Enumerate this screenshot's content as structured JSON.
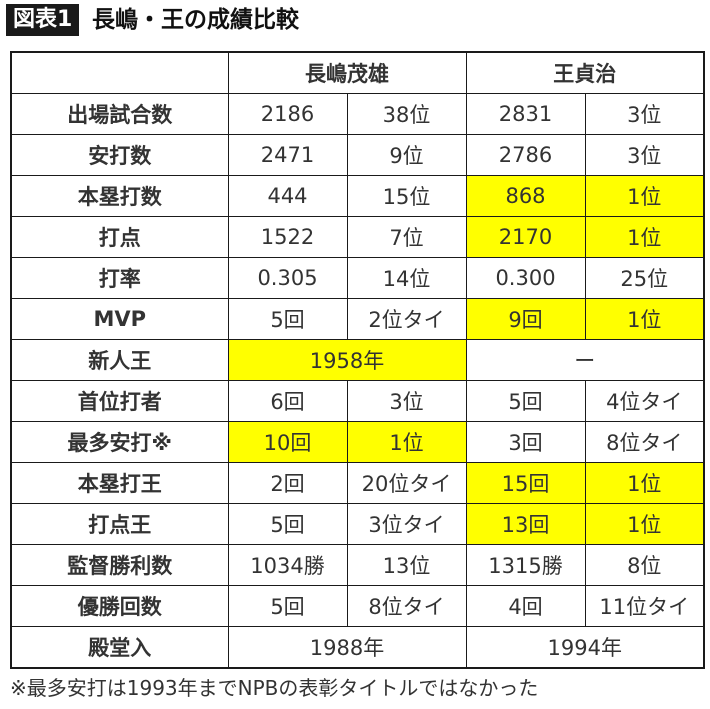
{
  "figure_label": "図表1",
  "title": "長嶋・王の成績比較",
  "players": [
    "長嶋茂雄",
    "王貞治"
  ],
  "rows": [
    {
      "label": "出場試合数",
      "nagashima_value": "2186",
      "nagashima_rank": "38位",
      "oh_value": "2831",
      "oh_rank": "3位"
    },
    {
      "label": "安打数",
      "nagashima_value": "2471",
      "nagashima_rank": "9位",
      "oh_value": "2786",
      "oh_rank": "3位"
    },
    {
      "label": "本塁打数",
      "nagashima_value": "444",
      "nagashima_rank": "15位",
      "oh_value": "868",
      "oh_rank": "1位"
    },
    {
      "label": "打点",
      "nagashima_value": "1522",
      "nagashima_rank": "7位",
      "oh_value": "2170",
      "oh_rank": "1位"
    },
    {
      "label": "打率",
      "nagashima_value": "0.305",
      "nagashima_rank": "14位",
      "oh_value": "0.300",
      "oh_rank": "25位"
    },
    {
      "label": "MVP",
      "nagashima_value": "5回",
      "nagashima_rank": "2位タイ",
      "oh_value": "9回",
      "oh_rank": "1位"
    },
    {
      "label": "新人王",
      "nagashima_merged": "1958年",
      "oh_merged": "ー"
    },
    {
      "label": "首位打者",
      "nagashima_value": "6回",
      "nagashima_rank": "3位",
      "oh_value": "5回",
      "oh_rank": "4位タイ"
    },
    {
      "label": "最多安打※",
      "nagashima_value": "10回",
      "nagashima_rank": "1位",
      "oh_value": "3回",
      "oh_rank": "8位タイ"
    },
    {
      "label": "本塁打王",
      "nagashima_value": "2回",
      "nagashima_rank": "20位タイ",
      "oh_value": "15回",
      "oh_rank": "1位"
    },
    {
      "label": "打点王",
      "nagashima_value": "5回",
      "nagashima_rank": "3位タイ",
      "oh_value": "13回",
      "oh_rank": "1位"
    },
    {
      "label": "監督勝利数",
      "nagashima_value": "1034勝",
      "nagashima_rank": "13位",
      "oh_value": "1315勝",
      "oh_rank": "8位"
    },
    {
      "label": "優勝回数",
      "nagashima_value": "5回",
      "nagashima_rank": "8位タイ",
      "oh_value": "4回",
      "oh_rank": "11位タイ"
    },
    {
      "label": "殿堂入",
      "nagashima_merged": "1988年",
      "oh_merged": "1994年"
    }
  ],
  "highlight_color": "#ffff00",
  "footnote": "※最多安打は1993年までNPBの表彰タイトルではなかった"
}
